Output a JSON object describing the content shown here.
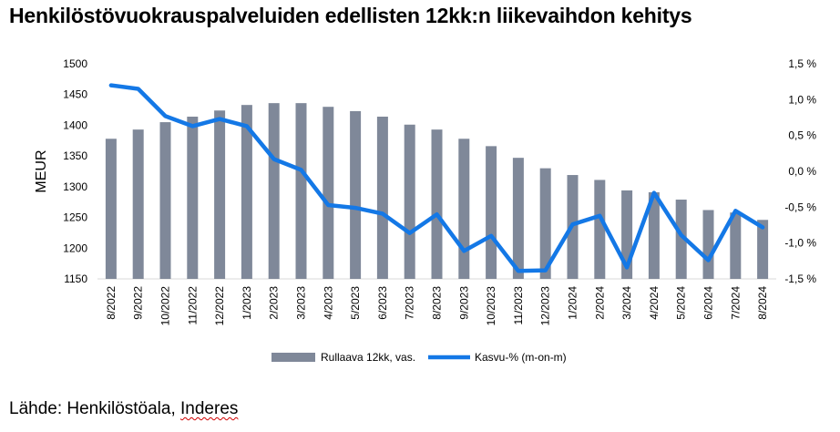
{
  "header": {
    "title": "Henkilöstövuokrauspalveluiden edellisten 12kk:n liikevaihdon kehitys"
  },
  "footer": {
    "source_prefix": "Lähde: Henkilöstöala, ",
    "source_brand": "Inderes"
  },
  "chart_data": {
    "type": "bar+line",
    "title": "Henkilöstövuokrauspalveluiden edellisten 12kk:n liikevaihdon kehitys",
    "categories": [
      "8/2022",
      "9/2022",
      "10/2022",
      "11/2022",
      "12/2022",
      "1/2023",
      "2/2023",
      "3/2023",
      "4/2023",
      "5/2023",
      "6/2023",
      "7/2023",
      "8/2023",
      "9/2023",
      "10/2023",
      "11/2023",
      "12/2023",
      "1/2024",
      "2/2024",
      "3/2024",
      "4/2024",
      "5/2024",
      "6/2024",
      "7/2024",
      "8/2024"
    ],
    "series": [
      {
        "name": "Rullaava 12kk, vas.",
        "type": "bar",
        "axis": "left",
        "color": "#7f8899",
        "values": [
          1378,
          1393,
          1405,
          1414,
          1424,
          1433,
          1436,
          1436,
          1430,
          1423,
          1414,
          1401,
          1393,
          1378,
          1366,
          1347,
          1330,
          1319,
          1311,
          1294,
          1291,
          1279,
          1262,
          1258,
          1246
        ]
      },
      {
        "name": "Kasvu-% (m-on-m)",
        "type": "line",
        "axis": "right",
        "color": "#1478e6",
        "values": [
          1.2,
          1.15,
          0.77,
          0.63,
          0.73,
          0.63,
          0.17,
          0.02,
          -0.47,
          -0.51,
          -0.59,
          -0.86,
          -0.6,
          -1.11,
          -0.9,
          -1.39,
          -1.38,
          -0.74,
          -0.62,
          -1.34,
          -0.3,
          -0.89,
          -1.24,
          -0.55,
          -0.78
        ]
      }
    ],
    "ylabel": "MEUR",
    "yleft": {
      "min": 1150,
      "max": 1500,
      "ticks": [
        1150,
        1200,
        1250,
        1300,
        1350,
        1400,
        1450,
        1500
      ],
      "labels": [
        "1150",
        "1200",
        "1250",
        "1300",
        "1350",
        "1400",
        "1450",
        "1500"
      ]
    },
    "yright": {
      "min": -1.5,
      "max": 1.5,
      "ticks": [
        -1.5,
        -1.0,
        -0.5,
        0.0,
        0.5,
        1.0,
        1.5
      ],
      "labels": [
        "-1,5 %",
        "-1,0 %",
        "-0,5 %",
        "0,0 %",
        "0,5 %",
        "1,0 %",
        "1,5 %"
      ]
    },
    "legend": {
      "position": "bottom",
      "items": [
        "Rullaava 12kk, vas.",
        "Kasvu-% (m-on-m)"
      ]
    }
  }
}
